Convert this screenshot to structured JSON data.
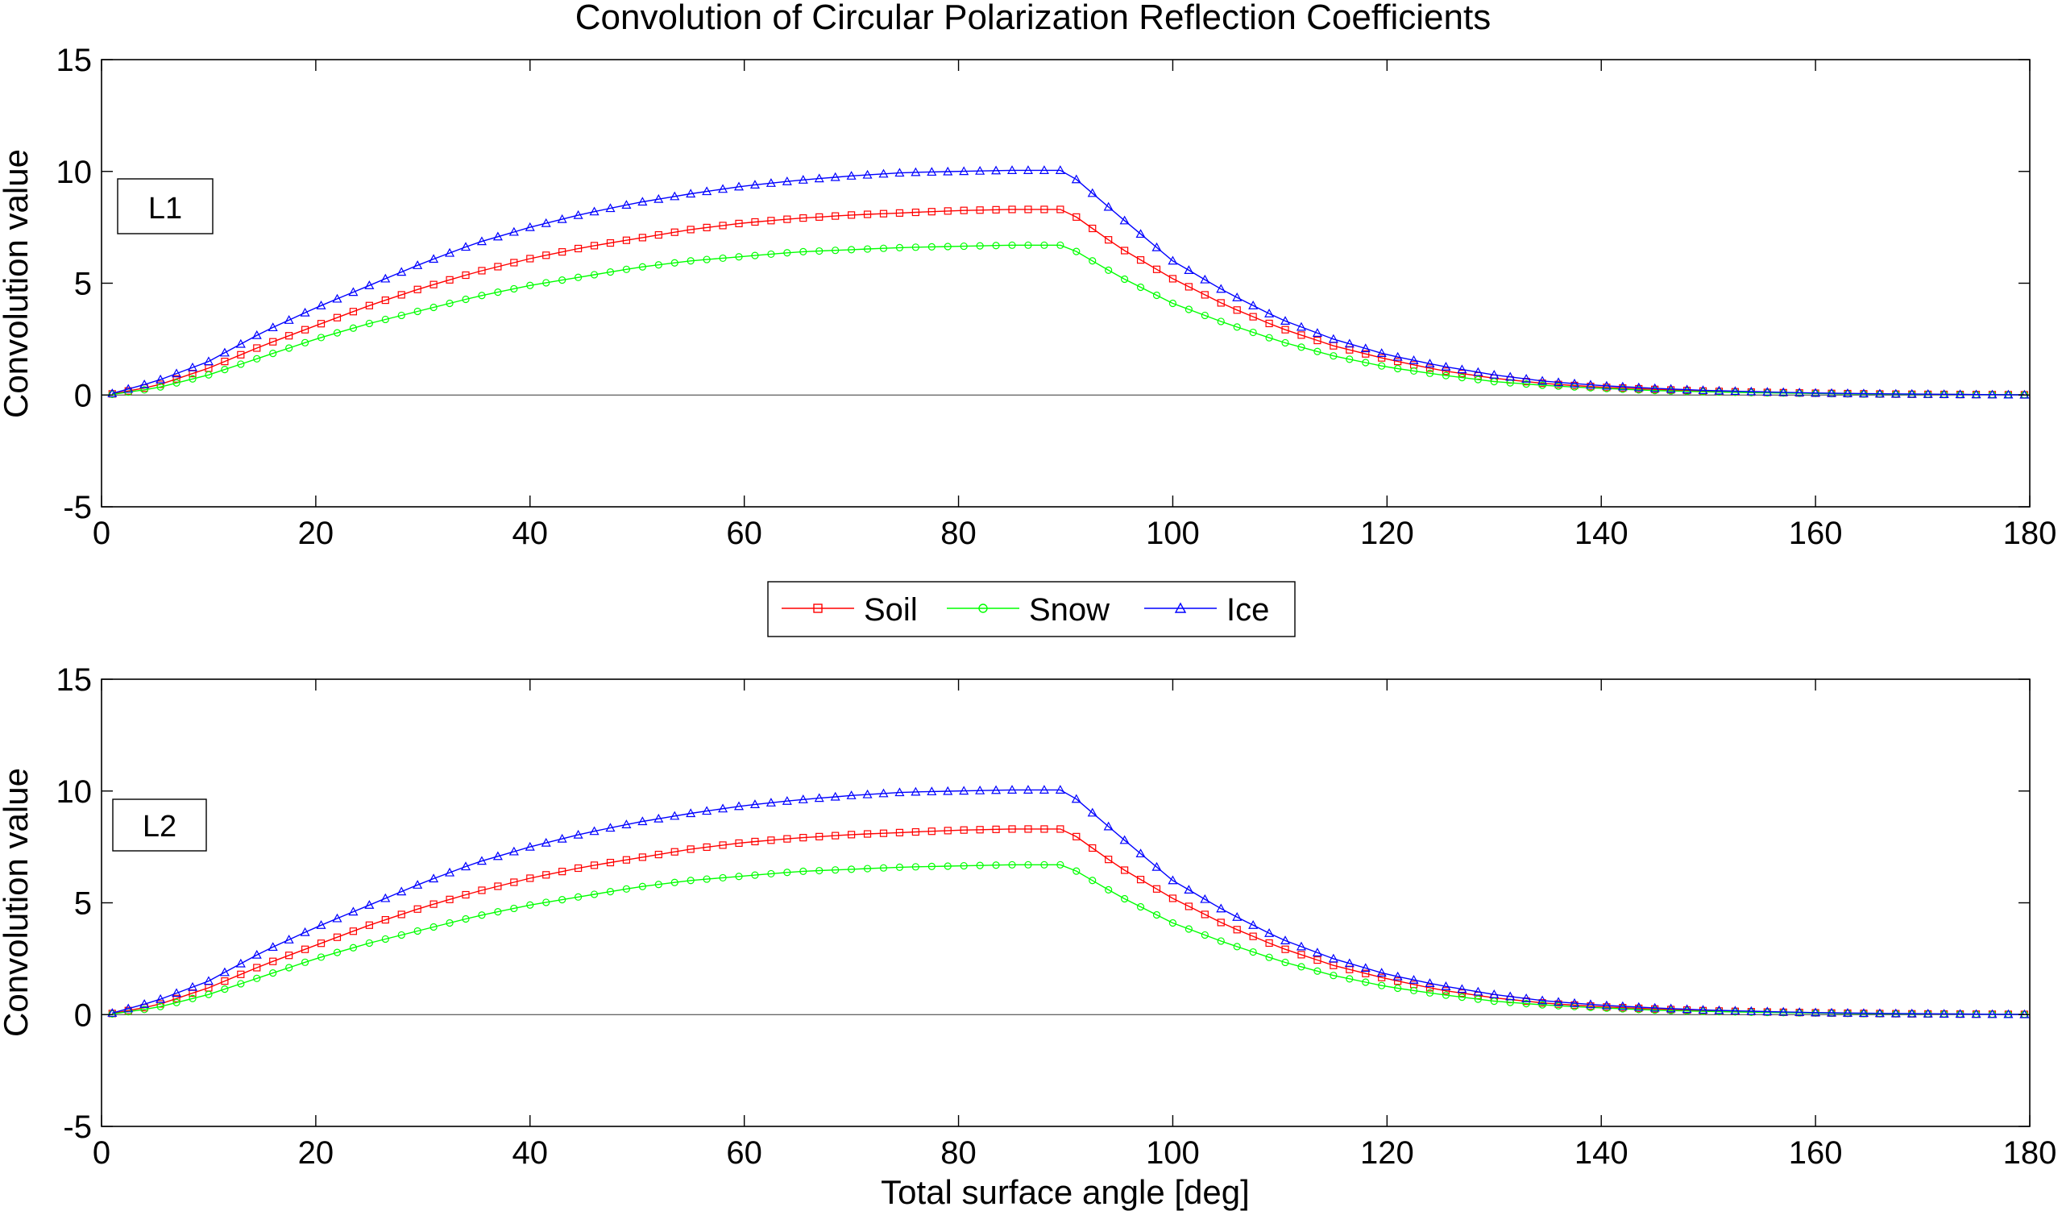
{
  "chart_data": {
    "type": "line",
    "title": "Convolution of Circular Polarization Reflection Coefficients",
    "xlabel": "Total surface angle [deg]",
    "ylabel": "Convolution value",
    "xlim": [
      0,
      180
    ],
    "ylim": [
      -5,
      15
    ],
    "xticks": [
      0,
      20,
      40,
      60,
      80,
      100,
      120,
      140,
      160,
      180
    ],
    "yticks": [
      -5,
      0,
      5,
      10,
      15
    ],
    "grid": false,
    "legend": {
      "placement": "center-between-panels",
      "entries": [
        {
          "name": "Soil",
          "color": "#ff0000",
          "marker": "square"
        },
        {
          "name": "Snow",
          "color": "#00ff00",
          "marker": "circle"
        },
        {
          "name": "Ice",
          "color": "#0000ff",
          "marker": "triangle"
        }
      ]
    },
    "panels": [
      {
        "label": "L1",
        "x_step": 1.5,
        "x_start": 1,
        "series": [
          {
            "name": "Soil",
            "color": "#ff0000",
            "marker": "square",
            "key_points": {
              "x": [
                1,
                5,
                10,
                15,
                20,
                25,
                30,
                35,
                40,
                45,
                50,
                55,
                60,
                65,
                70,
                75,
                80,
                85,
                90,
                95,
                100,
                105,
                110,
                115,
                120,
                125,
                130,
                135,
                140,
                145,
                150,
                155,
                160,
                165,
                170,
                175,
                179
              ],
              "y": [
                0.05,
                0.4,
                1.2,
                2.2,
                3.1,
                4.0,
                4.8,
                5.5,
                6.1,
                6.6,
                7.0,
                7.4,
                7.7,
                7.9,
                8.05,
                8.15,
                8.25,
                8.3,
                8.3,
                6.6,
                5.2,
                4.0,
                3.0,
                2.2,
                1.6,
                1.1,
                0.75,
                0.5,
                0.35,
                0.25,
                0.17,
                0.12,
                0.08,
                0.05,
                0.03,
                0.02,
                0.01
              ]
            }
          },
          {
            "name": "Snow",
            "color": "#00ff00",
            "marker": "circle",
            "key_points": {
              "x": [
                1,
                5,
                10,
                15,
                20,
                25,
                30,
                35,
                40,
                45,
                50,
                55,
                60,
                65,
                70,
                75,
                80,
                85,
                90,
                95,
                100,
                105,
                110,
                115,
                120,
                125,
                130,
                135,
                140,
                145,
                150,
                155,
                160,
                165,
                170,
                175,
                179
              ],
              "y": [
                0.03,
                0.3,
                0.9,
                1.7,
                2.5,
                3.2,
                3.8,
                4.4,
                4.9,
                5.3,
                5.7,
                6.0,
                6.2,
                6.4,
                6.5,
                6.6,
                6.65,
                6.7,
                6.7,
                5.3,
                4.1,
                3.2,
                2.4,
                1.75,
                1.25,
                0.9,
                0.6,
                0.42,
                0.3,
                0.2,
                0.14,
                0.1,
                0.07,
                0.04,
                0.03,
                0.02,
                0.01
              ]
            }
          },
          {
            "name": "Ice",
            "color": "#0000ff",
            "marker": "triangle",
            "key_points": {
              "x": [
                1,
                5,
                10,
                15,
                20,
                25,
                30,
                35,
                40,
                45,
                50,
                55,
                60,
                65,
                70,
                75,
                80,
                85,
                90,
                95,
                100,
                105,
                110,
                115,
                120,
                125,
                130,
                135,
                140,
                145,
                150,
                155,
                160,
                165,
                170,
                175,
                179
              ],
              "y": [
                0.07,
                0.6,
                1.5,
                2.8,
                3.9,
                4.9,
                5.9,
                6.8,
                7.5,
                8.1,
                8.6,
                9.0,
                9.35,
                9.6,
                9.8,
                9.95,
                10.0,
                10.05,
                10.05,
                8.0,
                6.0,
                4.6,
                3.4,
                2.5,
                1.8,
                1.3,
                0.9,
                0.6,
                0.42,
                0.3,
                0.2,
                0.14,
                0.09,
                0.06,
                0.04,
                0.02,
                0.01
              ]
            }
          }
        ]
      },
      {
        "label": "L2",
        "x_step": 1.5,
        "x_start": 1,
        "series": [
          {
            "name": "Soil",
            "color": "#ff0000",
            "marker": "square",
            "key_points": {
              "x": [
                1,
                5,
                10,
                15,
                20,
                25,
                30,
                35,
                40,
                45,
                50,
                55,
                60,
                65,
                70,
                75,
                80,
                85,
                90,
                95,
                100,
                105,
                110,
                115,
                120,
                125,
                130,
                135,
                140,
                145,
                150,
                155,
                160,
                165,
                170,
                175,
                179
              ],
              "y": [
                0.05,
                0.4,
                1.2,
                2.2,
                3.1,
                4.0,
                4.8,
                5.5,
                6.1,
                6.6,
                7.0,
                7.4,
                7.7,
                7.9,
                8.05,
                8.15,
                8.25,
                8.3,
                8.3,
                6.6,
                5.2,
                4.0,
                3.0,
                2.2,
                1.6,
                1.1,
                0.75,
                0.5,
                0.35,
                0.25,
                0.17,
                0.12,
                0.08,
                0.05,
                0.03,
                0.02,
                0.01
              ]
            }
          },
          {
            "name": "Snow",
            "color": "#00ff00",
            "marker": "circle",
            "key_points": {
              "x": [
                1,
                5,
                10,
                15,
                20,
                25,
                30,
                35,
                40,
                45,
                50,
                55,
                60,
                65,
                70,
                75,
                80,
                85,
                90,
                95,
                100,
                105,
                110,
                115,
                120,
                125,
                130,
                135,
                140,
                145,
                150,
                155,
                160,
                165,
                170,
                175,
                179
              ],
              "y": [
                0.03,
                0.3,
                0.9,
                1.7,
                2.5,
                3.2,
                3.8,
                4.4,
                4.9,
                5.3,
                5.7,
                6.0,
                6.2,
                6.4,
                6.5,
                6.6,
                6.65,
                6.7,
                6.7,
                5.3,
                4.1,
                3.2,
                2.4,
                1.75,
                1.25,
                0.9,
                0.6,
                0.42,
                0.3,
                0.2,
                0.14,
                0.1,
                0.07,
                0.04,
                0.03,
                0.02,
                0.01
              ]
            }
          },
          {
            "name": "Ice",
            "color": "#0000ff",
            "marker": "triangle",
            "key_points": {
              "x": [
                1,
                5,
                10,
                15,
                20,
                25,
                30,
                35,
                40,
                45,
                50,
                55,
                60,
                65,
                70,
                75,
                80,
                85,
                90,
                95,
                100,
                105,
                110,
                115,
                120,
                125,
                130,
                135,
                140,
                145,
                150,
                155,
                160,
                165,
                170,
                175,
                179
              ],
              "y": [
                0.07,
                0.6,
                1.5,
                2.8,
                3.9,
                4.9,
                5.9,
                6.8,
                7.5,
                8.1,
                8.6,
                9.0,
                9.35,
                9.6,
                9.8,
                9.95,
                10.0,
                10.05,
                10.05,
                8.0,
                6.0,
                4.6,
                3.4,
                2.5,
                1.8,
                1.3,
                0.9,
                0.6,
                0.42,
                0.3,
                0.2,
                0.14,
                0.09,
                0.06,
                0.04,
                0.02,
                0.01
              ]
            }
          }
        ]
      }
    ]
  }
}
